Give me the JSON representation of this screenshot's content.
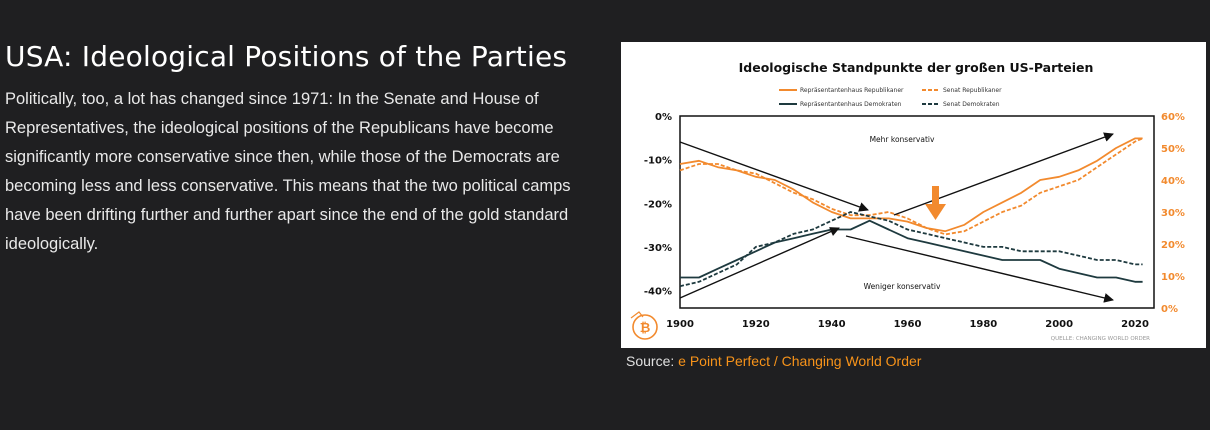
{
  "article": {
    "heading": "USA: Ideological Positions of the Parties",
    "body": "Politically, too, a lot has changed since 1971: In the Senate and House of Representatives, the ideological positions of the Republicans have become significantly more conservative since then, while those of the Democrats are becoming less and less conservative. This means that the two political camps have been drifting further and further apart since the end of the gold standard ideologically."
  },
  "caption": {
    "prefix": "Source: ",
    "link": "e Point Perfect / Changing World Order"
  },
  "colors": {
    "background": "#1f1f21",
    "republican": "#f28a2e",
    "democrat": "#1e3a3f",
    "axis_right": "#f28a2e",
    "link": "#f7931a"
  },
  "chart_data": {
    "type": "line",
    "title": "Ideologische Standpunkte der großen US-Parteien",
    "source": "QUELLE: CHANGING WORLD ORDER",
    "x_ticks": [
      1900,
      1920,
      1940,
      1960,
      1980,
      2000,
      2020
    ],
    "xlim": [
      1900,
      2025
    ],
    "left_axis": {
      "ticks": [
        "0%",
        "-10%",
        "-20%",
        "-30%",
        "-40%"
      ],
      "values": [
        0,
        -10,
        -20,
        -30,
        -40
      ],
      "ylim": [
        -44,
        0
      ]
    },
    "right_axis": {
      "ticks": [
        "60%",
        "50%",
        "40%",
        "30%",
        "20%",
        "10%",
        "0%"
      ],
      "values": [
        60,
        50,
        40,
        30,
        20,
        10,
        0
      ],
      "ylim": [
        0,
        60
      ]
    },
    "annotations": {
      "top": "Mehr konservativ",
      "bottom": "Weniger konservativ"
    },
    "highlight_year": 1971,
    "series": [
      {
        "name": "Repräsentantenhaus Republikaner",
        "axis": "right",
        "dash": false,
        "color": "#f28a2e",
        "x": [
          1900,
          1905,
          1910,
          1915,
          1920,
          1925,
          1930,
          1935,
          1940,
          1945,
          1950,
          1955,
          1960,
          1965,
          1970,
          1975,
          1980,
          1985,
          1990,
          1995,
          2000,
          2005,
          2010,
          2015,
          2020,
          2022
        ],
        "values": [
          45,
          46,
          44,
          43,
          41,
          40,
          37,
          33,
          30,
          28,
          28,
          28,
          27,
          25,
          24,
          26,
          30,
          33,
          36,
          40,
          41,
          43,
          46,
          50,
          53,
          53
        ]
      },
      {
        "name": "Senat Republikaner",
        "axis": "right",
        "dash": true,
        "color": "#f28a2e",
        "x": [
          1900,
          1905,
          1910,
          1915,
          1920,
          1925,
          1930,
          1935,
          1940,
          1945,
          1950,
          1955,
          1960,
          1965,
          1970,
          1975,
          1980,
          1985,
          1990,
          1995,
          2000,
          2005,
          2010,
          2015,
          2020,
          2022
        ],
        "values": [
          43,
          45,
          45,
          43,
          42,
          39,
          36,
          34,
          31,
          29,
          29,
          30,
          28,
          25,
          23,
          24,
          27,
          30,
          32,
          36,
          38,
          40,
          44,
          48,
          52,
          53
        ]
      },
      {
        "name": "Repräsentantenhaus Demokraten",
        "axis": "left",
        "dash": false,
        "color": "#1e3a3f",
        "x": [
          1900,
          1905,
          1910,
          1915,
          1920,
          1925,
          1930,
          1935,
          1940,
          1945,
          1950,
          1955,
          1960,
          1965,
          1970,
          1975,
          1980,
          1985,
          1990,
          1995,
          2000,
          2005,
          2010,
          2015,
          2020,
          2022
        ],
        "values": [
          -37,
          -37,
          -35,
          -33,
          -31,
          -29,
          -28,
          -27,
          -26,
          -26,
          -24,
          -26,
          -28,
          -29,
          -30,
          -31,
          -32,
          -33,
          -33,
          -33,
          -35,
          -36,
          -37,
          -37,
          -38,
          -38
        ]
      },
      {
        "name": "Senat Demokraten",
        "axis": "left",
        "dash": true,
        "color": "#1e3a3f",
        "x": [
          1900,
          1905,
          1910,
          1915,
          1920,
          1925,
          1930,
          1935,
          1940,
          1945,
          1950,
          1955,
          1960,
          1965,
          1970,
          1975,
          1980,
          1985,
          1990,
          1995,
          2000,
          2005,
          2010,
          2015,
          2020,
          2022
        ],
        "values": [
          -39,
          -38,
          -36,
          -34,
          -30,
          -29,
          -27,
          -26,
          -24,
          -22,
          -23,
          -24,
          -26,
          -27,
          -28,
          -29,
          -30,
          -30,
          -31,
          -31,
          -31,
          -32,
          -33,
          -33,
          -34,
          -34
        ]
      }
    ]
  }
}
